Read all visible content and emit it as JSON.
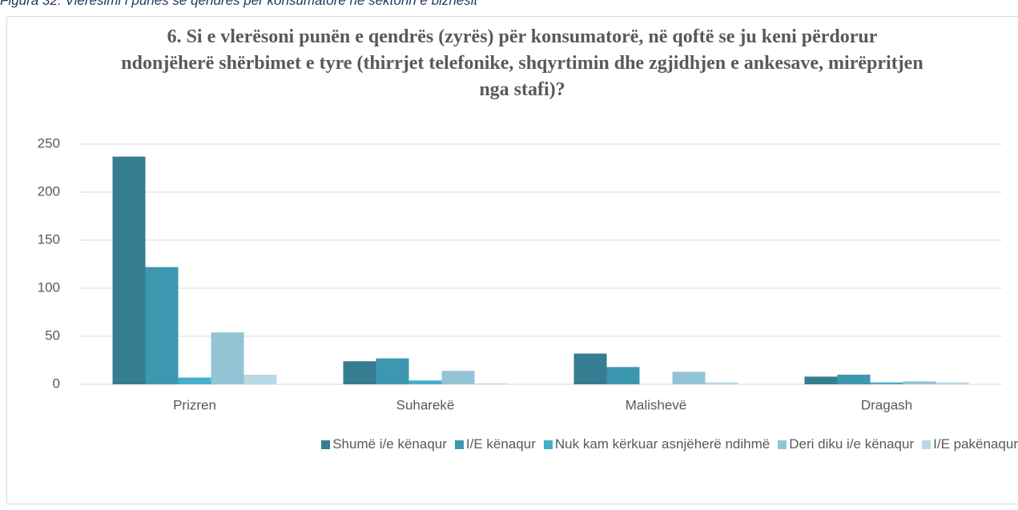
{
  "chart_data": {
    "type": "bar",
    "caption": "Figura 32: Vlerësimi i punës së qendrës për konsumatorë në sektorin e biznesit",
    "title": "6. Si e vlerësoni punën e qendrës (zyrës) për konsumatorë, në qoftë se ju keni përdorur ndonjëherë shërbimet e tyre (thirrjet telefonike, shqyrtimin dhe zgjidhjen e ankesave, mirëpritjen nga stafi)?",
    "categories": [
      "Prizren",
      "Suharekë",
      "Malishevë",
      "Dragash"
    ],
    "series": [
      {
        "name": "Shumë i/e kënaqur",
        "color": "#367d91",
        "values": [
          237,
          24,
          32,
          8
        ]
      },
      {
        "name": "I/E kënaqur",
        "color": "#3d97b0",
        "values": [
          122,
          27,
          18,
          10
        ]
      },
      {
        "name": "Nuk kam kërkuar asnjëherë ndihmë",
        "color": "#45afcb",
        "values": [
          7,
          4,
          0,
          2
        ]
      },
      {
        "name": "Deri diku i/e kënaqur",
        "color": "#93c4d5",
        "values": [
          54,
          14,
          13,
          3
        ]
      },
      {
        "name": "I/E pakënaqur",
        "color": "#b9d9e5",
        "values": [
          10,
          1,
          2,
          2
        ]
      }
    ],
    "ylim": [
      0,
      250
    ],
    "yticks": [
      0,
      50,
      100,
      150,
      200,
      250
    ],
    "grid": true,
    "legend": "bottom"
  }
}
